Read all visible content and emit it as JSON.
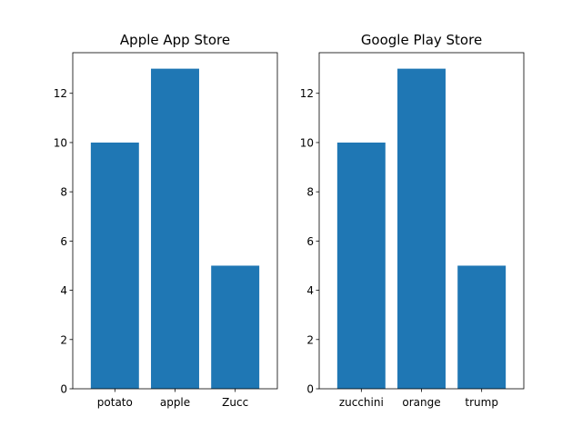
{
  "chart_data": [
    {
      "type": "bar",
      "title": "Apple App Store",
      "categories": [
        "potato",
        "apple",
        "Zucc"
      ],
      "values": [
        10,
        13,
        5
      ],
      "xlabel": "",
      "ylabel": "",
      "ylim": [
        0,
        13.65
      ],
      "yticks": [
        "0",
        "2",
        "4",
        "6",
        "8",
        "10",
        "12"
      ],
      "grid": false,
      "color": "#1f77b4"
    },
    {
      "type": "bar",
      "title": "Google Play Store",
      "categories": [
        "zucchini",
        "orange",
        "trump"
      ],
      "values": [
        10,
        13,
        5
      ],
      "xlabel": "",
      "ylabel": "",
      "ylim": [
        0,
        13.65
      ],
      "yticks": [
        "0",
        "2",
        "4",
        "6",
        "8",
        "10",
        "12"
      ],
      "grid": false,
      "color": "#1f77b4"
    }
  ]
}
